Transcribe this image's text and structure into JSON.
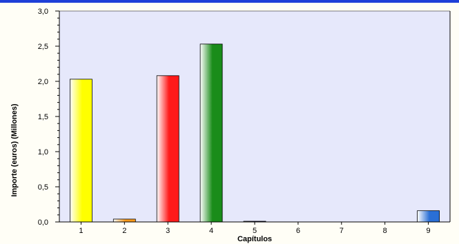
{
  "chart_data": {
    "type": "bar",
    "categories": [
      "1",
      "2",
      "3",
      "4",
      "5",
      "6",
      "7",
      "8",
      "9"
    ],
    "values": [
      2.03,
      0.04,
      2.08,
      2.53,
      0.01,
      0,
      0,
      0,
      0.16
    ],
    "xlabel": "Capítulos",
    "ylabel": "Importe (euros) (Millones)",
    "ylim": [
      0,
      3.0
    ],
    "y_ticks": [
      "0,0",
      "0,5",
      "1,0",
      "1,5",
      "2,0",
      "2,5",
      "3,0"
    ],
    "y_tick_values": [
      0,
      0.5,
      1.0,
      1.5,
      2.0,
      2.5,
      3.0
    ],
    "bar_colors": [
      "#ffff00",
      "#ff9a1a",
      "#ff1a1a",
      "#1a8c1a",
      "#1a1a8c",
      "#999999",
      "#999999",
      "#999999",
      "#2a6fd6"
    ],
    "plot_background": "#e6e8fb",
    "grid": false,
    "legend": "none"
  }
}
